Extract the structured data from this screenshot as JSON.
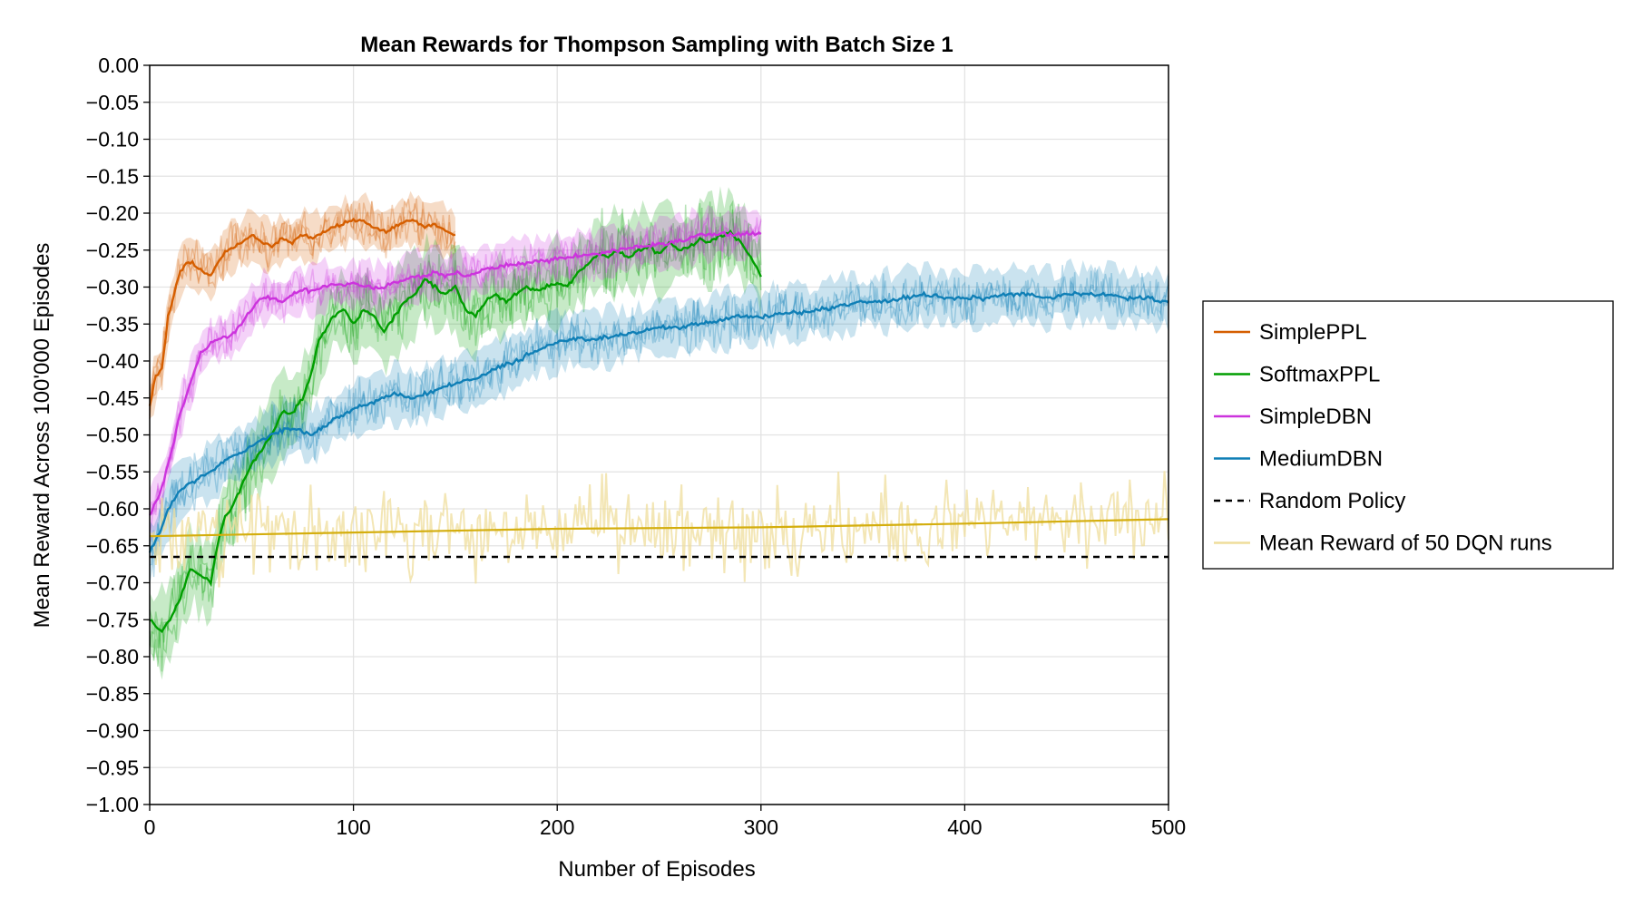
{
  "chart_data": {
    "type": "line",
    "title": "Mean Rewards for Thompson Sampling with Batch Size 1",
    "xlabel": "Number of Episodes",
    "ylabel": "Mean Reward Across 100'000 Episodes",
    "xlim": [
      0,
      500
    ],
    "ylim": [
      -1.0,
      0.0
    ],
    "xticks": [
      0,
      100,
      200,
      300,
      400,
      500
    ],
    "xtick_labels": [
      "0",
      "100",
      "200",
      "300",
      "400",
      "500"
    ],
    "yticks": [
      0.0,
      -0.05,
      -0.1,
      -0.15,
      -0.2,
      -0.25,
      -0.3,
      -0.35,
      -0.4,
      -0.45,
      -0.5,
      -0.55,
      -0.6,
      -0.65,
      -0.7,
      -0.75,
      -0.8,
      -0.85,
      -0.9,
      -0.95,
      -1.0
    ],
    "ytick_labels": [
      "0.00",
      "−0.05",
      "−0.10",
      "−0.15",
      "−0.20",
      "−0.25",
      "−0.30",
      "−0.35",
      "−0.40",
      "−0.45",
      "−0.50",
      "−0.55",
      "−0.60",
      "−0.65",
      "−0.70",
      "−0.75",
      "−0.80",
      "−0.85",
      "−0.90",
      "−0.95",
      "−1.00"
    ],
    "grid": true,
    "legend_position": "right",
    "series": [
      {
        "name": "SimplePPL",
        "color": "#d55e00",
        "band": 0.03,
        "points": [
          [
            0,
            -0.46
          ],
          [
            3,
            -0.42
          ],
          [
            6,
            -0.41
          ],
          [
            9,
            -0.34
          ],
          [
            12,
            -0.31
          ],
          [
            15,
            -0.28
          ],
          [
            18,
            -0.265
          ],
          [
            22,
            -0.27
          ],
          [
            27,
            -0.28
          ],
          [
            30,
            -0.285
          ],
          [
            33,
            -0.27
          ],
          [
            38,
            -0.25
          ],
          [
            45,
            -0.24
          ],
          [
            50,
            -0.23
          ],
          [
            55,
            -0.24
          ],
          [
            60,
            -0.245
          ],
          [
            65,
            -0.235
          ],
          [
            70,
            -0.24
          ],
          [
            75,
            -0.23
          ],
          [
            80,
            -0.235
          ],
          [
            85,
            -0.225
          ],
          [
            90,
            -0.22
          ],
          [
            95,
            -0.215
          ],
          [
            100,
            -0.21
          ],
          [
            105,
            -0.21
          ],
          [
            110,
            -0.22
          ],
          [
            115,
            -0.225
          ],
          [
            120,
            -0.22
          ],
          [
            125,
            -0.21
          ],
          [
            130,
            -0.21
          ],
          [
            135,
            -0.22
          ],
          [
            140,
            -0.215
          ],
          [
            145,
            -0.225
          ],
          [
            150,
            -0.23
          ]
        ]
      },
      {
        "name": "SoftmaxPPL",
        "color": "#009e00",
        "band": 0.05,
        "points": [
          [
            0,
            -0.75
          ],
          [
            3,
            -0.76
          ],
          [
            6,
            -0.765
          ],
          [
            10,
            -0.75
          ],
          [
            15,
            -0.72
          ],
          [
            20,
            -0.68
          ],
          [
            25,
            -0.69
          ],
          [
            30,
            -0.7
          ],
          [
            33,
            -0.65
          ],
          [
            37,
            -0.61
          ],
          [
            40,
            -0.6
          ],
          [
            45,
            -0.57
          ],
          [
            50,
            -0.54
          ],
          [
            55,
            -0.52
          ],
          [
            60,
            -0.5
          ],
          [
            65,
            -0.47
          ],
          [
            70,
            -0.47
          ],
          [
            75,
            -0.45
          ],
          [
            80,
            -0.41
          ],
          [
            83,
            -0.37
          ],
          [
            86,
            -0.36
          ],
          [
            90,
            -0.34
          ],
          [
            95,
            -0.33
          ],
          [
            100,
            -0.35
          ],
          [
            105,
            -0.33
          ],
          [
            110,
            -0.34
          ],
          [
            115,
            -0.36
          ],
          [
            120,
            -0.34
          ],
          [
            125,
            -0.32
          ],
          [
            130,
            -0.31
          ],
          [
            135,
            -0.29
          ],
          [
            140,
            -0.3
          ],
          [
            145,
            -0.31
          ],
          [
            150,
            -0.3
          ],
          [
            155,
            -0.33
          ],
          [
            160,
            -0.34
          ],
          [
            165,
            -0.32
          ],
          [
            170,
            -0.31
          ],
          [
            175,
            -0.32
          ],
          [
            180,
            -0.31
          ],
          [
            185,
            -0.3
          ],
          [
            190,
            -0.305
          ],
          [
            195,
            -0.3
          ],
          [
            200,
            -0.295
          ],
          [
            205,
            -0.3
          ],
          [
            210,
            -0.28
          ],
          [
            215,
            -0.27
          ],
          [
            220,
            -0.255
          ],
          [
            225,
            -0.26
          ],
          [
            230,
            -0.25
          ],
          [
            235,
            -0.26
          ],
          [
            240,
            -0.25
          ],
          [
            245,
            -0.245
          ],
          [
            250,
            -0.255
          ],
          [
            255,
            -0.24
          ],
          [
            260,
            -0.25
          ],
          [
            265,
            -0.245
          ],
          [
            270,
            -0.235
          ],
          [
            275,
            -0.24
          ],
          [
            280,
            -0.23
          ],
          [
            285,
            -0.225
          ],
          [
            290,
            -0.24
          ],
          [
            295,
            -0.26
          ],
          [
            300,
            -0.285
          ]
        ]
      },
      {
        "name": "SimpleDBN",
        "color": "#cc33dd",
        "band": 0.03,
        "points": [
          [
            0,
            -0.61
          ],
          [
            5,
            -0.58
          ],
          [
            10,
            -0.53
          ],
          [
            15,
            -0.47
          ],
          [
            20,
            -0.43
          ],
          [
            25,
            -0.39
          ],
          [
            30,
            -0.375
          ],
          [
            35,
            -0.37
          ],
          [
            40,
            -0.365
          ],
          [
            45,
            -0.35
          ],
          [
            50,
            -0.33
          ],
          [
            55,
            -0.315
          ],
          [
            60,
            -0.315
          ],
          [
            65,
            -0.32
          ],
          [
            70,
            -0.31
          ],
          [
            75,
            -0.305
          ],
          [
            80,
            -0.305
          ],
          [
            85,
            -0.3
          ],
          [
            90,
            -0.295
          ],
          [
            95,
            -0.298
          ],
          [
            100,
            -0.296
          ],
          [
            105,
            -0.298
          ],
          [
            110,
            -0.302
          ],
          [
            115,
            -0.3
          ],
          [
            120,
            -0.295
          ],
          [
            125,
            -0.29
          ],
          [
            130,
            -0.286
          ],
          [
            135,
            -0.285
          ],
          [
            140,
            -0.28
          ],
          [
            145,
            -0.285
          ],
          [
            150,
            -0.28
          ],
          [
            155,
            -0.285
          ],
          [
            160,
            -0.28
          ],
          [
            165,
            -0.275
          ],
          [
            170,
            -0.275
          ],
          [
            175,
            -0.27
          ],
          [
            180,
            -0.27
          ],
          [
            185,
            -0.268
          ],
          [
            190,
            -0.265
          ],
          [
            195,
            -0.265
          ],
          [
            200,
            -0.26
          ],
          [
            205,
            -0.26
          ],
          [
            210,
            -0.258
          ],
          [
            215,
            -0.256
          ],
          [
            220,
            -0.255
          ],
          [
            230,
            -0.25
          ],
          [
            240,
            -0.245
          ],
          [
            250,
            -0.242
          ],
          [
            260,
            -0.238
          ],
          [
            270,
            -0.23
          ],
          [
            280,
            -0.228
          ],
          [
            290,
            -0.228
          ],
          [
            300,
            -0.228
          ]
        ]
      },
      {
        "name": "MediumDBN",
        "color": "#0f7fb6",
        "band": 0.035,
        "points": [
          [
            0,
            -0.66
          ],
          [
            5,
            -0.63
          ],
          [
            10,
            -0.595
          ],
          [
            15,
            -0.575
          ],
          [
            20,
            -0.565
          ],
          [
            30,
            -0.55
          ],
          [
            40,
            -0.53
          ],
          [
            50,
            -0.515
          ],
          [
            60,
            -0.5
          ],
          [
            70,
            -0.49
          ],
          [
            80,
            -0.5
          ],
          [
            90,
            -0.48
          ],
          [
            100,
            -0.465
          ],
          [
            110,
            -0.455
          ],
          [
            120,
            -0.445
          ],
          [
            130,
            -0.45
          ],
          [
            140,
            -0.44
          ],
          [
            150,
            -0.43
          ],
          [
            160,
            -0.425
          ],
          [
            170,
            -0.41
          ],
          [
            180,
            -0.4
          ],
          [
            190,
            -0.385
          ],
          [
            200,
            -0.375
          ],
          [
            210,
            -0.37
          ],
          [
            220,
            -0.37
          ],
          [
            230,
            -0.365
          ],
          [
            240,
            -0.36
          ],
          [
            250,
            -0.355
          ],
          [
            260,
            -0.355
          ],
          [
            270,
            -0.35
          ],
          [
            280,
            -0.345
          ],
          [
            290,
            -0.34
          ],
          [
            300,
            -0.34
          ],
          [
            310,
            -0.335
          ],
          [
            320,
            -0.335
          ],
          [
            330,
            -0.33
          ],
          [
            340,
            -0.325
          ],
          [
            350,
            -0.32
          ],
          [
            360,
            -0.32
          ],
          [
            370,
            -0.315
          ],
          [
            380,
            -0.31
          ],
          [
            390,
            -0.315
          ],
          [
            400,
            -0.315
          ],
          [
            410,
            -0.315
          ],
          [
            420,
            -0.31
          ],
          [
            430,
            -0.31
          ],
          [
            440,
            -0.315
          ],
          [
            450,
            -0.31
          ],
          [
            460,
            -0.31
          ],
          [
            470,
            -0.31
          ],
          [
            480,
            -0.315
          ],
          [
            490,
            -0.315
          ],
          [
            500,
            -0.32
          ]
        ]
      },
      {
        "name": "Random Policy",
        "color": "#000000",
        "dashed": true,
        "points": [
          [
            0,
            -0.665
          ],
          [
            500,
            -0.665
          ]
        ]
      },
      {
        "name": "Mean Reward of 50 DQN runs",
        "color": "#efdd9c",
        "noisy": true,
        "x_range": [
          0,
          500
        ],
        "mean_line": [
          [
            0,
            -0.637
          ],
          [
            100,
            -0.632
          ],
          [
            200,
            -0.627
          ],
          [
            300,
            -0.625
          ],
          [
            400,
            -0.62
          ],
          [
            500,
            -0.614
          ]
        ],
        "mean_color": "#d4ae0e"
      }
    ]
  }
}
